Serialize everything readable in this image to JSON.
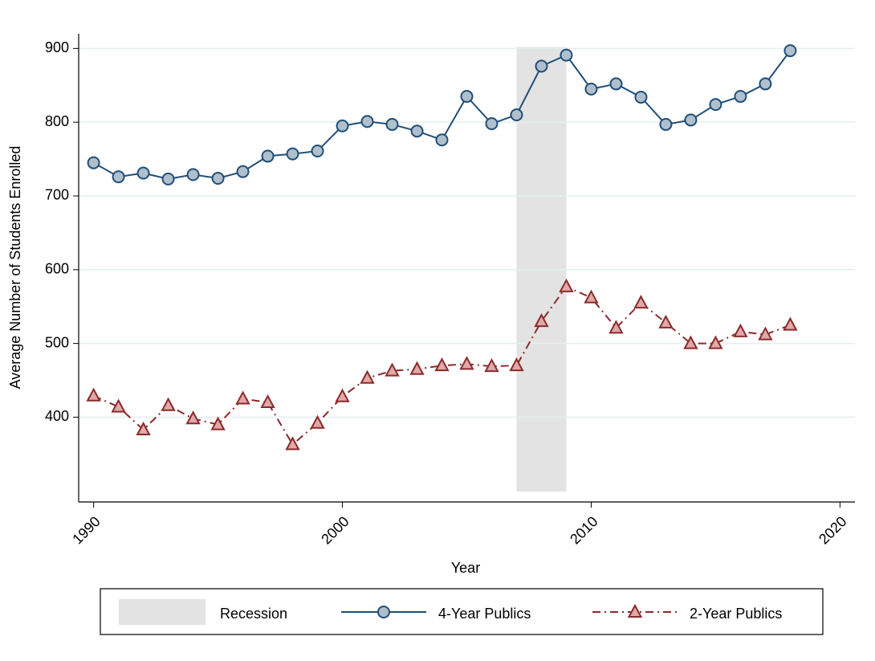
{
  "chart_data": {
    "type": "line",
    "x_label": "Year",
    "y_label": "Average Number of Students Enrolled",
    "x": [
      1990,
      1991,
      1992,
      1993,
      1994,
      1995,
      1996,
      1997,
      1998,
      1999,
      2000,
      2001,
      2002,
      2003,
      2004,
      2005,
      2006,
      2007,
      2008,
      2009,
      2010,
      2011,
      2012,
      2013,
      2014,
      2015,
      2016,
      2017,
      2018
    ],
    "series": [
      {
        "name": "4-Year Publics",
        "color": "#1f4e79",
        "marker": "circle",
        "dash": "solid",
        "values": [
          745,
          726,
          731,
          723,
          729,
          724,
          733,
          754,
          757,
          761,
          795,
          801,
          797,
          788,
          776,
          835,
          798,
          810,
          876,
          891,
          845,
          852,
          834,
          797,
          803,
          824,
          835,
          852,
          897
        ]
      },
      {
        "name": "2-Year Publics",
        "color": "#8b2a2a",
        "marker": "triangle",
        "dash": "dashdot",
        "values": [
          429,
          414,
          383,
          416,
          398,
          390,
          425,
          420,
          363,
          392,
          428,
          453,
          463,
          465,
          470,
          472,
          469,
          470,
          530,
          577,
          562,
          521,
          555,
          528,
          500,
          500,
          516,
          512,
          525
        ]
      }
    ],
    "band": {
      "name": "Recession",
      "color": "#e3e3e3",
      "x": [
        2007,
        2009
      ],
      "y": [
        299,
        902
      ]
    },
    "xlim": [
      1989.4,
      2020.6
    ],
    "xticks": [
      1990,
      2000,
      2010,
      2020
    ],
    "ylim": [
      285,
      920
    ],
    "yticks": [
      400,
      500,
      600,
      700,
      800,
      900
    ],
    "grid": true,
    "legend": "bottom"
  }
}
